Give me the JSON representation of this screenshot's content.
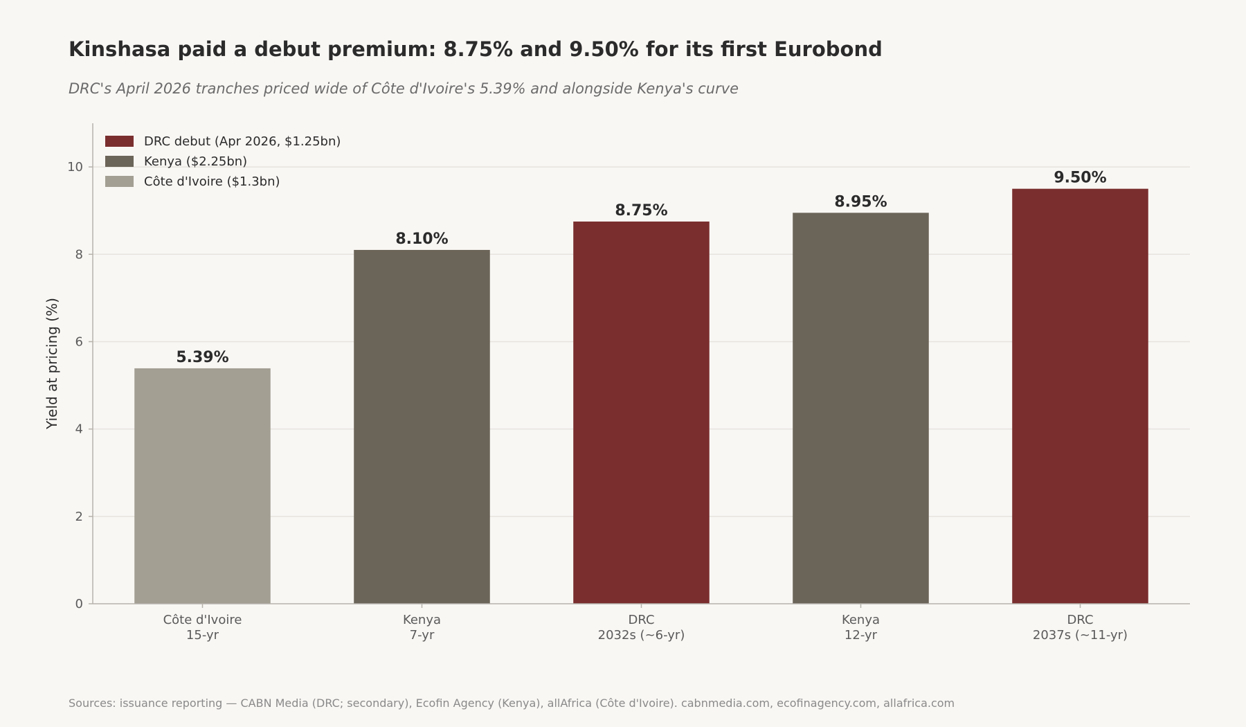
{
  "chart_data": {
    "type": "bar",
    "title": "Kinshasa paid a debut premium: 8.75% and 9.50% for its first Eurobond",
    "subtitle": "DRC's April 2026 tranches priced wide of Côte d'Ivoire's 5.39% and alongside Kenya's curve",
    "ylabel": "Yield at pricing (%)",
    "xlabel": "",
    "ylim": [
      0,
      11
    ],
    "yticks": [
      0,
      2,
      4,
      6,
      8,
      10
    ],
    "grid": "horizontal",
    "legend_position": "top-left",
    "categories": [
      [
        "Côte d'Ivoire",
        "15-yr"
      ],
      [
        "Kenya",
        "7-yr"
      ],
      [
        "DRC",
        "2032s (~6-yr)"
      ],
      [
        "Kenya",
        "12-yr"
      ],
      [
        "DRC",
        "2037s (~11-yr)"
      ]
    ],
    "values": [
      5.39,
      8.1,
      8.75,
      8.95,
      9.5
    ],
    "value_labels": [
      "5.39%",
      "8.10%",
      "8.75%",
      "8.95%",
      "9.50%"
    ],
    "bar_series": [
      2,
      1,
      0,
      1,
      0
    ],
    "series": [
      {
        "name": "DRC debut (Apr 2026, $1.25bn)",
        "color": "#7a2e2e"
      },
      {
        "name": "Kenya ($2.25bn)",
        "color": "#6b6458"
      },
      {
        "name": "Côte d'Ivoire ($1.3bn)",
        "color": "#a39f93"
      }
    ],
    "source": "Sources: issuance reporting — CABN Media (DRC; secondary), Ecofin Agency (Kenya), allAfrica (Côte d'Ivoire). cabnmedia.com, ecofinagency.com, allafrica.com"
  },
  "colors": {
    "background": "#f9f7f4",
    "grid": "#e6e3de",
    "axis": "#b5b2ab"
  }
}
